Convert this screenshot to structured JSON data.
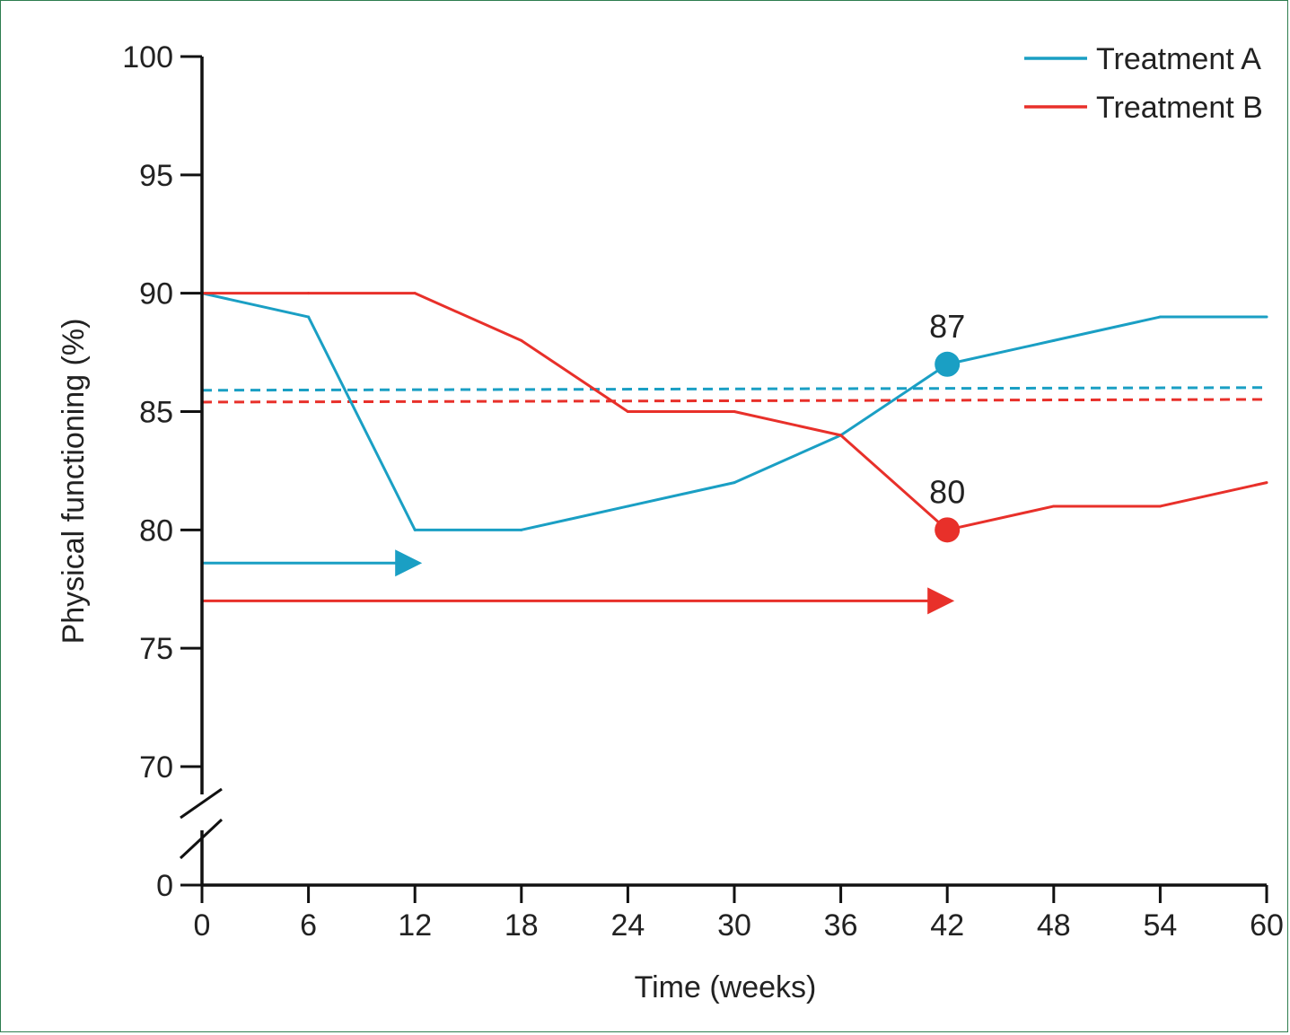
{
  "colors": {
    "treatment_a": "#1a9fc4",
    "treatment_b": "#e8302a",
    "axis": "#111111"
  },
  "chart_data": {
    "type": "line",
    "title": "",
    "xlabel": "Time (weeks)",
    "ylabel": "Physical functioning (%)",
    "xlim": [
      0,
      60
    ],
    "ylim": [
      70,
      100
    ],
    "y_axis_break": "between 0 and 70",
    "x_ticks": [
      "0",
      "6",
      "12",
      "18",
      "24",
      "30",
      "36",
      "42",
      "48",
      "54",
      "60"
    ],
    "x_tick_values": [
      0,
      6,
      12,
      18,
      24,
      30,
      36,
      42,
      48,
      54,
      60
    ],
    "y_ticks": [
      "0",
      "70",
      "75",
      "80",
      "85",
      "90",
      "95",
      "100"
    ],
    "y_tick_values": [
      0,
      70,
      75,
      80,
      85,
      90,
      95,
      100
    ],
    "grid": false,
    "legend_position": "top-right",
    "series": [
      {
        "name": "Treatment A",
        "color_key": "treatment_a",
        "x": [
          0,
          6,
          12,
          18,
          24,
          30,
          36,
          42,
          48,
          54,
          60
        ],
        "y": [
          90,
          89,
          80,
          80,
          81,
          82,
          84,
          87,
          88,
          89,
          89
        ],
        "highlight": {
          "x": 42,
          "y": 87,
          "label": "87"
        },
        "reference_level": 85.9,
        "arrow": {
          "y": 78.6,
          "x_start": 0,
          "x_end": 12
        }
      },
      {
        "name": "Treatment B",
        "color_key": "treatment_b",
        "x": [
          0,
          6,
          12,
          18,
          24,
          30,
          36,
          42,
          48,
          54,
          60
        ],
        "y": [
          90,
          90,
          90,
          88,
          85,
          85,
          84,
          80,
          81,
          81,
          82
        ],
        "highlight": {
          "x": 42,
          "y": 80,
          "label": "80"
        },
        "reference_level": 85.4,
        "arrow": {
          "y": 77,
          "x_start": 0,
          "x_end": 42
        }
      }
    ]
  }
}
